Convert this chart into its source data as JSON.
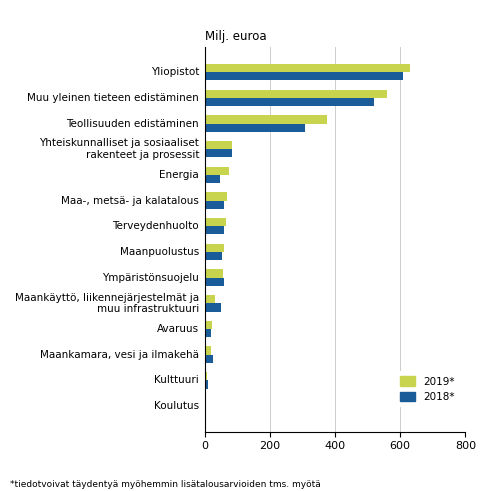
{
  "categories": [
    "Yliopistot",
    "Muu yleinen tieteen edistäminen",
    "Teollisuuden edistäminen",
    "Yhteiskunnalliset ja sosiaaliset\nrakenteet ja prosessit",
    "Energia",
    "Maa-, metsä- ja kalatalous",
    "Terveydenhuolto",
    "Maanpuolustus",
    "Ympäristönsuojelu",
    "Maankäyttö, liikennejärjestelmät ja\nmuu infrastruktuuri",
    "Avaruus",
    "Maankamara, vesi ja ilmakehä",
    "Kulttuuri",
    "Koulutus"
  ],
  "values_2019": [
    630,
    560,
    375,
    85,
    75,
    68,
    65,
    60,
    55,
    32,
    22,
    18,
    7,
    2
  ],
  "values_2018": [
    608,
    520,
    308,
    85,
    48,
    60,
    58,
    52,
    58,
    50,
    20,
    26,
    11,
    1
  ],
  "color_2019": "#c8d44e",
  "color_2018": "#1a5c99",
  "top_label": "Milj. euroa",
  "xlim": [
    0,
    800
  ],
  "xticks": [
    0,
    200,
    400,
    600,
    800
  ],
  "legend_2019": "2019*",
  "legend_2018": "2018*",
  "footnote": "*tiedotvoivat täydentyä myöhemmin lisätalousarvioiden tms. myötä",
  "bar_height": 0.32,
  "background_color": "#ffffff"
}
